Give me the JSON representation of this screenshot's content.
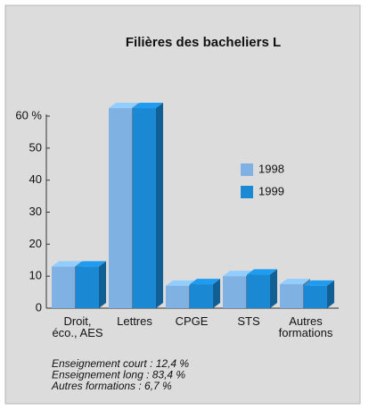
{
  "chart_data": {
    "type": "bar3d",
    "title": "Filières des bacheliers L",
    "categories": [
      "Droit,\néco., AES",
      "Lettres",
      "CPGE",
      "STS",
      "Autres\nformations"
    ],
    "series": [
      {
        "name": "1998",
        "color": "#7fb2e2",
        "values": [
          13,
          62.5,
          7,
          10,
          7.5
        ]
      },
      {
        "name": "1999",
        "color": "#1a88d2",
        "values": [
          13,
          62.5,
          7.5,
          10.5,
          7
        ]
      }
    ],
    "ylim": [
      0,
      60
    ],
    "yticks": [
      0,
      10,
      20,
      30,
      40,
      50,
      {
        "value": 60,
        "label": "60 %"
      }
    ],
    "notes": [
      "Enseignement court : 12,4 %",
      "Enseignement long : 83,4 %",
      "Autres formations : 6,7 %"
    ]
  }
}
